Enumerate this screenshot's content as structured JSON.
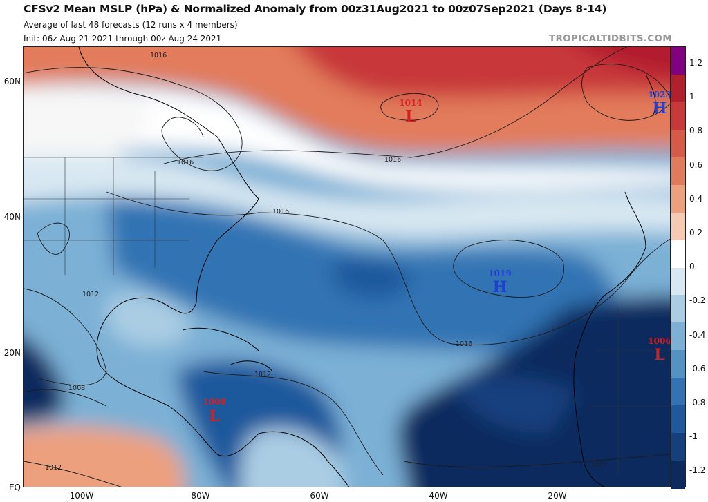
{
  "header": {
    "title": "CFSv2 Mean MSLP (hPa) & Normalized Anomaly from 00z31Aug2021 to 00z07Sep2021 (Days 8-14)",
    "subtitle_1": "Average of last 48 forecasts (12 runs x 4 members)",
    "subtitle_2": "Init: 06z Aug 21 2021 through 00z Aug 24 2021",
    "brand": "TROPICALTIDBITS.COM"
  },
  "axes": {
    "lat_labels": [
      "60N",
      "40N",
      "20N",
      "EQ"
    ],
    "lon_labels": [
      "100W",
      "80W",
      "60W",
      "40W",
      "20W"
    ]
  },
  "colorbar": {
    "labels": [
      "1.2",
      "1",
      "0.8",
      "0.6",
      "0.4",
      "0.2",
      "0",
      "-0.2",
      "-0.4",
      "-0.6",
      "-0.8",
      "-1",
      "-1.2"
    ],
    "colors": [
      "#800080",
      "#b21f2d",
      "#c8393a",
      "#d75a48",
      "#e27b5c",
      "#eda07e",
      "#f6c9b2",
      "#ffffff",
      "#d8e8f2",
      "#aacde4",
      "#7cb0d5",
      "#5592c4",
      "#3373b3",
      "#1f589c",
      "#14407e",
      "#0d2a5e"
    ]
  },
  "systems": [
    {
      "pressure": "1014",
      "letter": "L",
      "color": "#d42020"
    },
    {
      "pressure": "1023",
      "letter": "H",
      "color": "#1f3fd1"
    },
    {
      "pressure": "1019",
      "letter": "H",
      "color": "#1f3fd1"
    },
    {
      "pressure": "1006",
      "letter": "L",
      "color": "#d42020"
    },
    {
      "pressure": "1008",
      "letter": "L",
      "color": "#d42020"
    }
  ],
  "isobar_labels": [
    "1016",
    "1016",
    "1016",
    "1016",
    "1016",
    "1012",
    "1012",
    "1012",
    "1008",
    "1012"
  ]
}
